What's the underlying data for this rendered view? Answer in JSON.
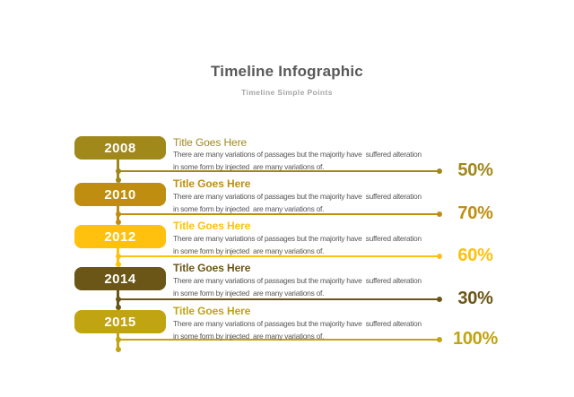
{
  "slide": {
    "title": "Timeline Infographic",
    "subtitle": "Timeline Simple Points"
  },
  "colors": {
    "background": "#ffffff",
    "title_text": "#595959",
    "subtitle_text": "#a6a6a6",
    "body_text": "#595959"
  },
  "timeline": {
    "rows": [
      {
        "year": "2008",
        "title": "Title Goes Here",
        "body_line1": "There are many variations of passages but the majority have  suffered alteration",
        "body_line2": "in some form by injected  are many variations of.",
        "percent": "50%",
        "accent": "#a0881b"
      },
      {
        "year": "2010",
        "title": "Title Goes Here",
        "body_line1": "There are many variations of passages but the majority have  suffered alteration",
        "body_line2": "in some form by injected  are many variations of.",
        "percent": "70%",
        "accent": "#bf8e11"
      },
      {
        "year": "2012",
        "title": "Title Goes Here",
        "body_line1": "There are many variations of passages but the majority have  suffered alteration",
        "body_line2": "in some form by injected  are many variations of.",
        "percent": "60%",
        "accent": "#ffc10e"
      },
      {
        "year": "2014",
        "title": "Title Goes Here",
        "body_line1": "There are many variations of passages but the majority have  suffered alteration",
        "body_line2": "in some form by injected  are many variations of.",
        "percent": "30%",
        "accent": "#6b5617"
      },
      {
        "year": "2015",
        "title": "Title Goes Here",
        "body_line1": "There are many variations of passages but the majority have  suffered alteration",
        "body_line2": "in some form by injected  are many variations of.",
        "percent": "100%",
        "accent": "#c1a412"
      }
    ]
  }
}
